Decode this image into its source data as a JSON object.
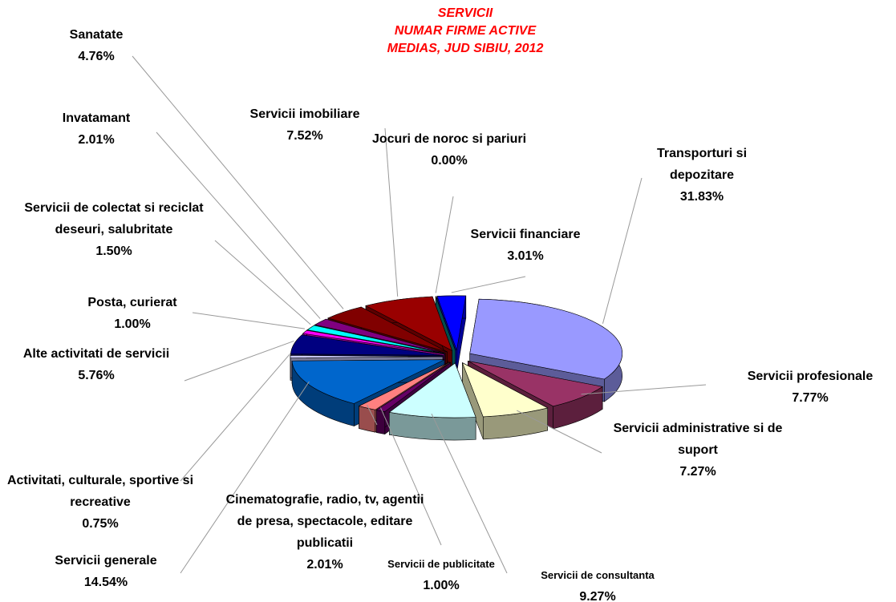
{
  "chart_data": {
    "type": "pie",
    "title": [
      "SERVICII",
      "NUMAR FIRME ACTIVE",
      "MEDIAS, JUD SIBIU, 2012"
    ],
    "categories": [
      "Transporturi si depozitare",
      "Servicii profesionale",
      "Servicii administrative si de suport",
      "Servicii de consultanta",
      "Servicii de publicitate",
      "Cinematografie, radio, tv, agentii de presa, spectacole, editare publicatii",
      "Servicii generale",
      "Activitati, culturale, sportive si recreative",
      "Alte activitati de servicii",
      "Posta, curierat",
      "Servicii de colectat si reciclat deseuri, salubritate",
      "Invatamant",
      "Sanatate",
      "Servicii imobiliare",
      "Jocuri de noroc si pariuri",
      "Servicii financiare"
    ],
    "values": [
      31.83,
      7.77,
      7.27,
      9.27,
      1.0,
      2.01,
      14.54,
      0.75,
      5.76,
      1.0,
      1.5,
      2.01,
      4.76,
      7.52,
      0.0,
      3.01
    ],
    "value_labels": [
      "31.83%",
      "7.77%",
      "7.27%",
      "9.27%",
      "1.00%",
      "2.01%",
      "14.54%",
      "0.75%",
      "5.76%",
      "1.00%",
      "1.50%",
      "2.01%",
      "4.76%",
      "7.52%",
      "0.00%",
      "3.01%"
    ],
    "colors": [
      "#9999ff",
      "#993366",
      "#ffffcc",
      "#ccffff",
      "#660066",
      "#ff8080",
      "#0066cc",
      "#ccccff",
      "#000080",
      "#ff00ff",
      "#00ffff",
      "#800080",
      "#800000",
      "#990000",
      "#008080",
      "#0000ff"
    ]
  }
}
